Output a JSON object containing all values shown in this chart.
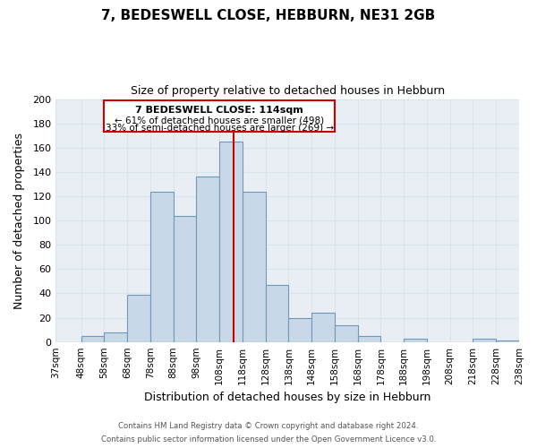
{
  "title": "7, BEDESWELL CLOSE, HEBBURN, NE31 2GB",
  "subtitle": "Size of property relative to detached houses in Hebburn",
  "xlabel": "Distribution of detached houses by size in Hebburn",
  "ylabel": "Number of detached properties",
  "bar_left_edges": [
    37,
    48,
    58,
    68,
    78,
    88,
    98,
    108,
    118,
    128,
    138,
    148,
    158,
    168,
    178,
    188,
    198,
    208,
    218,
    228
  ],
  "bar_widths": [
    11,
    10,
    10,
    10,
    10,
    10,
    10,
    10,
    10,
    10,
    10,
    10,
    10,
    10,
    10,
    10,
    10,
    10,
    10,
    10
  ],
  "bar_heights": [
    0,
    5,
    8,
    39,
    124,
    104,
    136,
    165,
    124,
    47,
    20,
    24,
    14,
    5,
    0,
    3,
    0,
    0,
    3,
    1
  ],
  "bar_color": "#c8d8e8",
  "bar_edgecolor": "#7098b8",
  "property_line_x": 114,
  "property_line_color": "#cc0000",
  "annotation_title": "7 BEDESWELL CLOSE: 114sqm",
  "annotation_line1": "← 61% of detached houses are smaller (498)",
  "annotation_line2": "33% of semi-detached houses are larger (269) →",
  "annotation_box_color": "#cc0000",
  "annotation_fill": "#ffffff",
  "ylim": [
    0,
    200
  ],
  "yticks": [
    0,
    20,
    40,
    60,
    80,
    100,
    120,
    140,
    160,
    180,
    200
  ],
  "xtick_labels": [
    "37sqm",
    "48sqm",
    "58sqm",
    "68sqm",
    "78sqm",
    "88sqm",
    "98sqm",
    "108sqm",
    "118sqm",
    "128sqm",
    "138sqm",
    "148sqm",
    "158sqm",
    "168sqm",
    "178sqm",
    "188sqm",
    "198sqm",
    "208sqm",
    "218sqm",
    "228sqm",
    "238sqm"
  ],
  "footer1": "Contains HM Land Registry data © Crown copyright and database right 2024.",
  "footer2": "Contains public sector information licensed under the Open Government Licence v3.0.",
  "background_color": "#ffffff",
  "grid_color": "#d8e4f0",
  "plot_bg_color": "#e8eef4"
}
